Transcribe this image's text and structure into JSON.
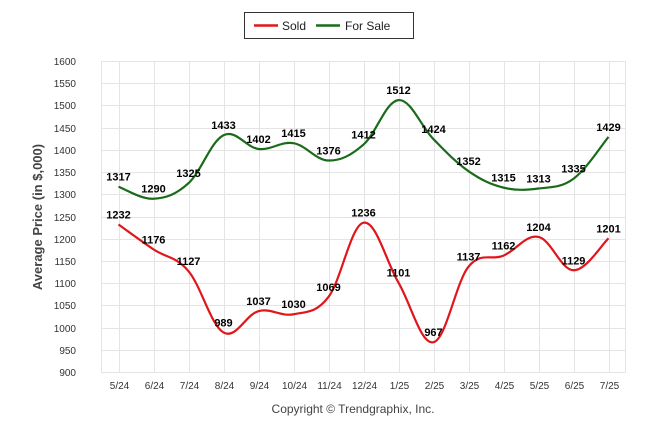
{
  "chart_data": {
    "type": "line",
    "ylabel": "Average Price (in $,000)",
    "footer": "Copyright © Trendgraphix, Inc.",
    "categories": [
      "5/24",
      "6/24",
      "7/24",
      "8/24",
      "9/24",
      "10/24",
      "11/24",
      "12/24",
      "1/25",
      "2/25",
      "3/25",
      "4/25",
      "5/25",
      "6/25",
      "7/25"
    ],
    "ylim": [
      900,
      1600
    ],
    "yticks": [
      900,
      950,
      1000,
      1050,
      1100,
      1150,
      1200,
      1250,
      1300,
      1350,
      1400,
      1450,
      1500,
      1550,
      1600
    ],
    "grid": true,
    "legend_position": "top-center",
    "series": [
      {
        "name": "Sold",
        "color": "#e0161b",
        "values": [
          1232,
          1176,
          1127,
          989,
          1037,
          1030,
          1069,
          1236,
          1101,
          967,
          1137,
          1162,
          1204,
          1129,
          1201
        ]
      },
      {
        "name": "For Sale",
        "color": "#1a6b1a",
        "values": [
          1317,
          1290,
          1325,
          1433,
          1402,
          1415,
          1376,
          1412,
          1512,
          1424,
          1352,
          1315,
          1313,
          1335,
          1429
        ]
      }
    ]
  }
}
